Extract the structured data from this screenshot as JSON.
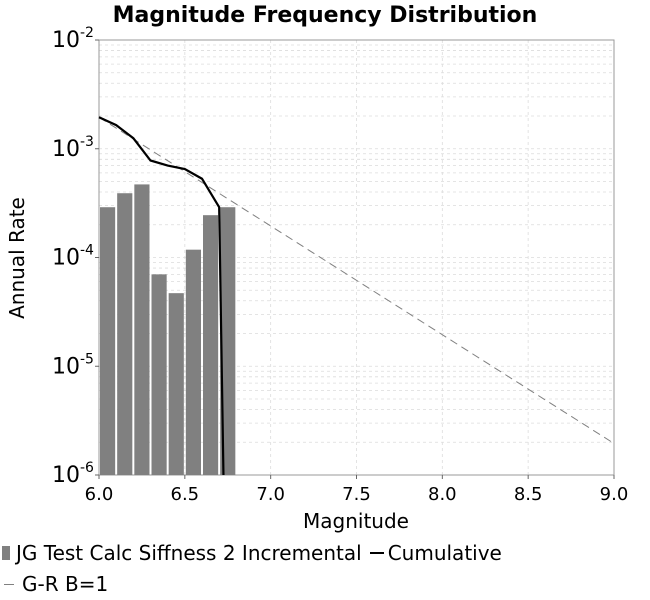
{
  "chart_data": {
    "type": "bar",
    "title": "Magnitude Frequency Distribution",
    "xlabel": "Magnitude",
    "ylabel": "Annual Rate",
    "xlim": [
      6.0,
      9.0
    ],
    "ylim": [
      1e-06,
      0.01
    ],
    "yscale": "log",
    "x_ticks": [
      "6.0",
      "6.5",
      "7.0",
      "7.5",
      "8.0",
      "8.5",
      "9.0"
    ],
    "y_ticks": [
      {
        "base": "10",
        "exp": "-6"
      },
      {
        "base": "10",
        "exp": "-5"
      },
      {
        "base": "10",
        "exp": "-4"
      },
      {
        "base": "10",
        "exp": "-3"
      },
      {
        "base": "10",
        "exp": "-2"
      }
    ],
    "grid": true,
    "legend_position": "bottom",
    "series": [
      {
        "name": "JG Test Calc Siffness 2 Incremental",
        "kind": "bar",
        "color": "#808080",
        "x": [
          6.05,
          6.15,
          6.25,
          6.35,
          6.45,
          6.55,
          6.65,
          6.75
        ],
        "values": [
          0.00029,
          0.00039,
          0.00047,
          7e-05,
          4.7e-05,
          0.000118,
          0.000245,
          0.00029
        ]
      },
      {
        "name": "Cumulative",
        "kind": "line",
        "color": "#000000",
        "x": [
          6.0,
          6.1,
          6.2,
          6.3,
          6.4,
          6.5,
          6.6,
          6.7,
          6.725
        ],
        "values": [
          0.00195,
          0.00165,
          0.00125,
          0.00078,
          0.0007,
          0.00065,
          0.00053,
          0.00029,
          1e-06
        ]
      },
      {
        "name": "G-R B=1",
        "kind": "dashed-line",
        "color": "#808080",
        "x": [
          6.0,
          9.0
        ],
        "values": [
          0.00195,
          1.95e-06
        ]
      }
    ]
  }
}
